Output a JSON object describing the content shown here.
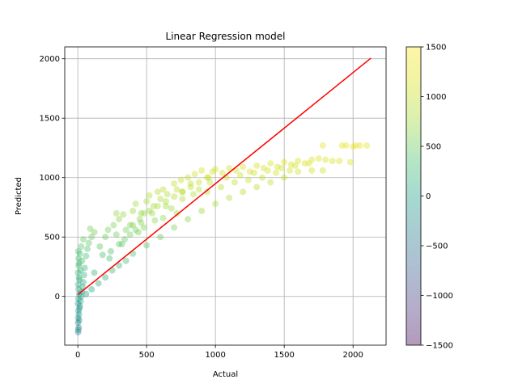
{
  "chart_data": {
    "type": "scatter",
    "title": "Linear Regression model",
    "xlabel": "Actual",
    "ylabel": "Predicted",
    "xlim": [
      -95,
      2240
    ],
    "ylim": [
      -410,
      2100
    ],
    "xticks": [
      0,
      500,
      1000,
      1500,
      2000
    ],
    "yticks": [
      0,
      500,
      1000,
      1500,
      2000
    ],
    "grid": true,
    "point_alpha": 0.4,
    "colormap": "viridis",
    "colorbar": {
      "range": [
        -1500,
        1500
      ],
      "ticks": [
        -1500,
        -1000,
        -500,
        0,
        500,
        1000,
        1500
      ]
    },
    "fit_line": {
      "color": "#ff0000",
      "x": [
        0,
        2130
      ],
      "y": [
        15,
        2005
      ]
    },
    "series": [
      {
        "values": [
          [
            2,
            -300
          ],
          [
            4,
            -280
          ],
          [
            6,
            -260
          ],
          [
            2,
            -220
          ],
          [
            10,
            -200
          ],
          [
            3,
            -180
          ],
          [
            8,
            -150
          ],
          [
            5,
            -120
          ],
          [
            12,
            -100
          ],
          [
            15,
            -80
          ],
          [
            1,
            -60
          ],
          [
            20,
            -40
          ],
          [
            4,
            -20
          ],
          [
            25,
            0
          ],
          [
            10,
            20
          ],
          [
            30,
            40
          ],
          [
            6,
            60
          ],
          [
            35,
            80
          ],
          [
            3,
            100
          ],
          [
            40,
            120
          ],
          [
            12,
            140
          ],
          [
            8,
            160
          ],
          [
            45,
            180
          ],
          [
            2,
            200
          ],
          [
            20,
            220
          ],
          [
            50,
            240
          ],
          [
            6,
            260
          ],
          [
            10,
            280
          ],
          [
            30,
            300
          ],
          [
            5,
            320
          ],
          [
            60,
            340
          ],
          [
            15,
            360
          ],
          [
            4,
            380
          ],
          [
            70,
            400
          ],
          [
            25,
            420
          ],
          [
            80,
            450
          ],
          [
            40,
            480
          ],
          [
            100,
            500
          ],
          [
            120,
            540
          ],
          [
            90,
            570
          ],
          [
            160,
            420
          ],
          [
            200,
            500
          ],
          [
            220,
            560
          ],
          [
            260,
            600
          ],
          [
            300,
            650
          ],
          [
            280,
            700
          ],
          [
            330,
            690
          ],
          [
            350,
            560
          ],
          [
            380,
            600
          ],
          [
            400,
            720
          ],
          [
            420,
            780
          ],
          [
            450,
            650
          ],
          [
            480,
            700
          ],
          [
            500,
            800
          ],
          [
            520,
            850
          ],
          [
            550,
            760
          ],
          [
            580,
            880
          ],
          [
            600,
            820
          ],
          [
            620,
            900
          ],
          [
            650,
            860
          ],
          [
            700,
            950
          ],
          [
            720,
            900
          ],
          [
            750,
            980
          ],
          [
            800,
            1000
          ],
          [
            820,
            950
          ],
          [
            850,
            1030
          ],
          [
            900,
            1060
          ],
          [
            950,
            1000
          ],
          [
            980,
            1050
          ],
          [
            1000,
            1070
          ],
          [
            1050,
            1040
          ],
          [
            1100,
            1080
          ],
          [
            1150,
            1060
          ],
          [
            1200,
            1090
          ],
          [
            1250,
            1050
          ],
          [
            1300,
            1100
          ],
          [
            1350,
            1080
          ],
          [
            1400,
            1120
          ],
          [
            1450,
            1090
          ],
          [
            1500,
            1130
          ],
          [
            1550,
            1110
          ],
          [
            1600,
            1140
          ],
          [
            1650,
            1120
          ],
          [
            1700,
            1150
          ],
          [
            1750,
            1160
          ],
          [
            1780,
            1270
          ],
          [
            1800,
            1150
          ],
          [
            1850,
            1140
          ],
          [
            1900,
            1140
          ],
          [
            1920,
            1270
          ],
          [
            1950,
            1270
          ],
          [
            1980,
            1130
          ],
          [
            2000,
            1260
          ],
          [
            2020,
            1270
          ],
          [
            2050,
            1270
          ],
          [
            2100,
            1270
          ],
          [
            1780,
            1060
          ],
          [
            1700,
            1060
          ],
          [
            1600,
            1050
          ],
          [
            1500,
            1000
          ],
          [
            1400,
            960
          ],
          [
            1300,
            920
          ],
          [
            1200,
            880
          ],
          [
            1100,
            830
          ],
          [
            1000,
            780
          ],
          [
            900,
            720
          ],
          [
            800,
            650
          ],
          [
            700,
            580
          ],
          [
            600,
            500
          ],
          [
            500,
            430
          ],
          [
            400,
            360
          ],
          [
            350,
            300
          ],
          [
            300,
            260
          ],
          [
            250,
            220
          ],
          [
            200,
            160
          ],
          [
            150,
            110
          ],
          [
            100,
            60
          ],
          [
            60,
            20
          ],
          [
            120,
            200
          ],
          [
            180,
            350
          ],
          [
            240,
            380
          ],
          [
            320,
            440
          ],
          [
            440,
            540
          ],
          [
            560,
            640
          ],
          [
            680,
            740
          ],
          [
            760,
            820
          ],
          [
            880,
            900
          ],
          [
            960,
            960
          ],
          [
            1080,
            1000
          ],
          [
            1180,
            1020
          ],
          [
            1280,
            1040
          ],
          [
            1380,
            1060
          ],
          [
            1480,
            1080
          ],
          [
            1580,
            1100
          ],
          [
            1680,
            1120
          ],
          [
            640,
            760
          ],
          [
            760,
            880
          ],
          [
            540,
            700
          ],
          [
            460,
            620
          ],
          [
            380,
            520
          ],
          [
            300,
            440
          ],
          [
            230,
            320
          ],
          [
            280,
            520
          ],
          [
            340,
            480
          ],
          [
            420,
            560
          ],
          [
            480,
            580
          ],
          [
            620,
            660
          ],
          [
            720,
            700
          ],
          [
            840,
            860
          ],
          [
            940,
            880
          ],
          [
            1040,
            920
          ],
          [
            1140,
            960
          ],
          [
            1240,
            980
          ],
          [
            1340,
            1000
          ],
          [
            1440,
            1040
          ],
          [
            1540,
            1060
          ],
          [
            400,
            600
          ],
          [
            460,
            700
          ],
          [
            520,
            720
          ],
          [
            580,
            760
          ],
          [
            640,
            800
          ],
          [
            700,
            840
          ],
          [
            760,
            880
          ],
          [
            820,
            920
          ],
          [
            880,
            960
          ],
          [
            940,
            1000
          ]
        ]
      }
    ]
  }
}
